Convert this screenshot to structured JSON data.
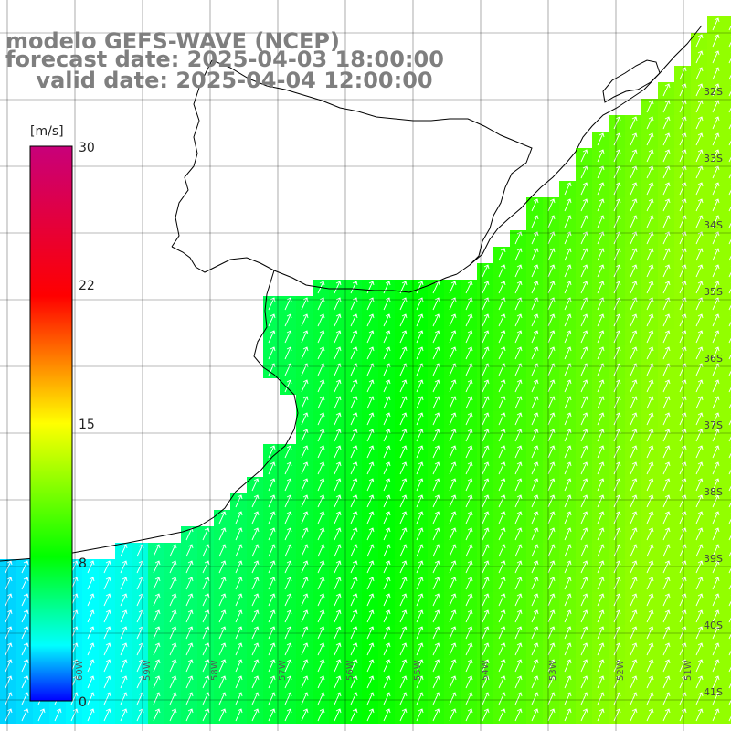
{
  "title": {
    "line1": "modelo GEFS-WAVE (NCEP)",
    "line2": "forecast date: 2025-04-03 18:00:00",
    "line3": "    valid date: 2025-04-04 12:00:00"
  },
  "colorbar": {
    "unit": "[m/s]",
    "ticks": [
      "30",
      "22",
      "15",
      "8",
      "0"
    ],
    "colors": [
      "#c8007a",
      "#ff0000",
      "#ffff00",
      "#00ff00",
      "#00ffff",
      "#0000ff"
    ]
  },
  "lat_labels": [
    "32S",
    "33S",
    "34S",
    "35S",
    "36S",
    "37S",
    "38S",
    "39S",
    "40S",
    "41S"
  ],
  "lon_labels": [
    "60W",
    "59W",
    "58W",
    "57W",
    "56W",
    "55W",
    "54W",
    "53W",
    "52W",
    "51W"
  ],
  "colors": {
    "land": "#ffffff",
    "grid": "#000000",
    "coast": "#000000",
    "arrow": "#ffffff",
    "title": "#7f7f7f"
  }
}
